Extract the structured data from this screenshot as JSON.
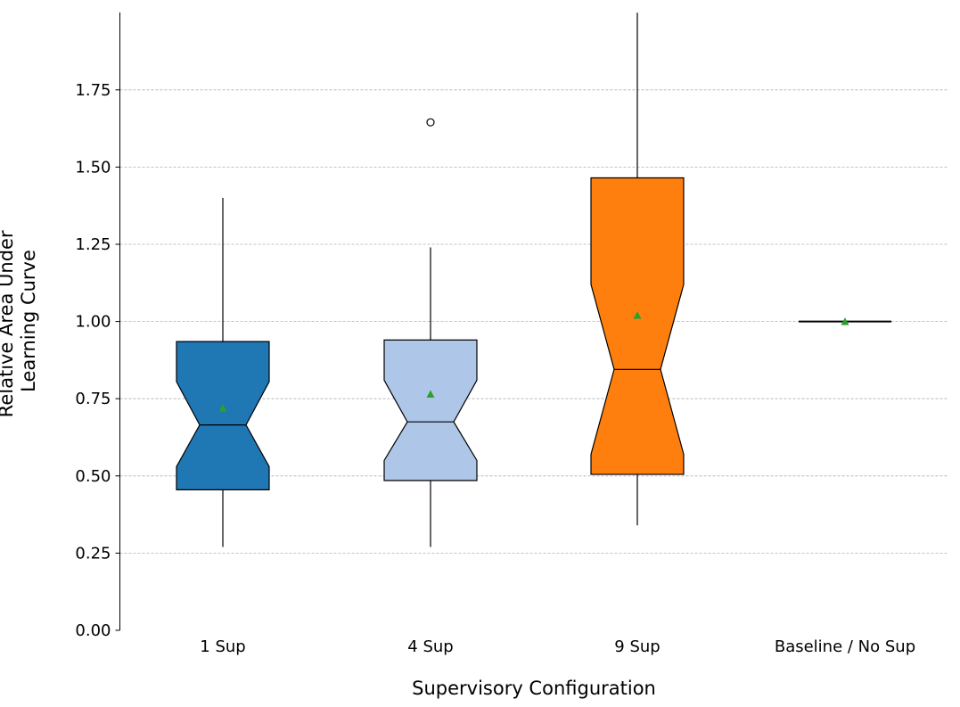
{
  "chart_data": {
    "type": "boxplot",
    "notched": true,
    "show_means": true,
    "xlabel": "Supervisory Configuration",
    "ylabel_lines": [
      "Relative Area Under",
      "Learning Curve"
    ],
    "ylim": [
      0,
      2.0
    ],
    "yticks": [
      0.0,
      0.25,
      0.5,
      0.75,
      1.0,
      1.25,
      1.5,
      1.75
    ],
    "ytick_labels": [
      "0.00",
      "0.25",
      "0.50",
      "0.75",
      "1.00",
      "1.25",
      "1.50",
      "1.75"
    ],
    "grid": "horizontal dashed",
    "categories": [
      "1 Sup",
      "4 Sup",
      "9 Sup",
      "Baseline / No Sup"
    ],
    "series": [
      {
        "category": "1 Sup",
        "color": "#1f77b4",
        "whisker_low": 0.27,
        "q1": 0.455,
        "notch_low": 0.53,
        "median": 0.665,
        "notch_high": 0.805,
        "q3": 0.935,
        "whisker_high": 1.4,
        "mean": 0.72,
        "outliers": []
      },
      {
        "category": "4 Sup",
        "color": "#aec7e8",
        "whisker_low": 0.27,
        "q1": 0.485,
        "notch_low": 0.55,
        "median": 0.675,
        "notch_high": 0.81,
        "q3": 0.94,
        "whisker_high": 1.24,
        "mean": 0.765,
        "outliers": [
          1.645
        ]
      },
      {
        "category": "9 Sup",
        "color": "#ff7f0e",
        "whisker_low": 0.34,
        "q1": 0.505,
        "notch_low": 0.57,
        "median": 0.845,
        "notch_high": 1.12,
        "q3": 1.465,
        "whisker_high": 2.0,
        "mean": 1.02,
        "outliers": []
      },
      {
        "category": "Baseline / No Sup",
        "color": "#7f7f7f",
        "whisker_low": 1.0,
        "q1": 1.0,
        "notch_low": 1.0,
        "median": 1.0,
        "notch_high": 1.0,
        "q3": 1.0,
        "whisker_high": 1.0,
        "mean": 1.0,
        "outliers": []
      }
    ],
    "mean_marker_color": "#2ca02c"
  }
}
